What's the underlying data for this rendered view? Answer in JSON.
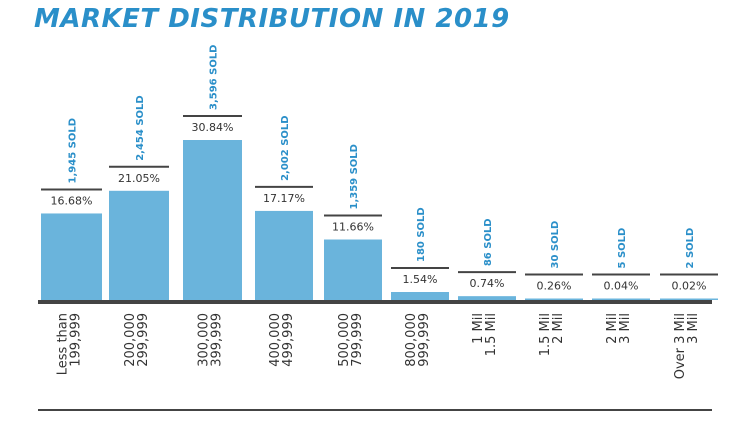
{
  "colors": {
    "title": "#2a8fc9",
    "bar": "#6ab4dc",
    "sold": "#2a8fc9",
    "text": "#333333",
    "axis": "#444444"
  },
  "chart_data": {
    "type": "bar",
    "title": "MARKET DISTRIBUTION IN 2019",
    "categories": [
      [
        "Less than",
        "199,999"
      ],
      [
        "200,000",
        "299,999"
      ],
      [
        "300,000",
        "399,999"
      ],
      [
        "400,000",
        "499,999"
      ],
      [
        "500,000",
        "799,999"
      ],
      [
        "800,000",
        "999,999"
      ],
      [
        "1 Mil",
        "1.5 Mil"
      ],
      [
        "1.5 Mil",
        "2 Mil"
      ],
      [
        "2 Mil",
        "3 Mil"
      ],
      [
        "Over 3 Mil",
        "3 Mil"
      ]
    ],
    "values": [
      16.68,
      21.05,
      30.84,
      17.17,
      11.66,
      1.54,
      0.74,
      0.26,
      0.04,
      0.02
    ],
    "value_labels": [
      "16.68%",
      "21.05%",
      "30.84%",
      "17.17%",
      "11.66%",
      "1.54%",
      "0.74%",
      "0.26%",
      "0.04%",
      "0.02%"
    ],
    "sold_labels": [
      "1,945 SOLD",
      "2,454 SOLD",
      "3,596 SOLD",
      "2,002 SOLD",
      "1,359 SOLD",
      "180 SOLD",
      "86 SOLD",
      "30 SOLD",
      "5 SOLD",
      "2 SOLD"
    ],
    "ylim": [
      0,
      30.84
    ],
    "grid": false,
    "legend": "none"
  }
}
